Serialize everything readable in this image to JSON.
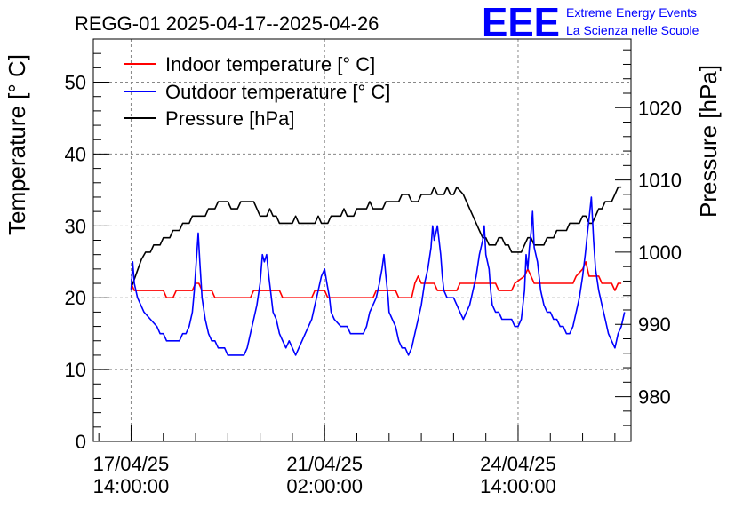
{
  "colors": {
    "indoor": "#ff0000",
    "outdoor": "#0000ff",
    "pressure": "#000000",
    "logo": "#0000ff",
    "grid": "#888888"
  },
  "logo": {
    "mark": "EEE",
    "line1": "Extreme Energy Events",
    "line2": "La Scienza nelle Scuole"
  },
  "chart_data": {
    "type": "line",
    "title": "REGG-01 2025-04-17--2025-04-26",
    "xlabel": "",
    "ylabel": "Temperature [° C]",
    "y2label": "Pressure [hPa]",
    "x_unit": "hours since 17/04/25 14:00:00",
    "xlim": [
      -11.7,
      155
    ],
    "ylim": [
      0,
      56
    ],
    "y2lim": [
      973.8,
      1029.5
    ],
    "grid": true,
    "legend_position": "top-left",
    "x_ticks": [
      {
        "x": 0,
        "line1": "17/04/25",
        "line2": "14:00:00"
      },
      {
        "x": 60,
        "line1": "21/04/25",
        "line2": "02:00:00"
      },
      {
        "x": 120,
        "line1": "24/04/25",
        "line2": "14:00:00"
      }
    ],
    "y_ticks": [
      {
        "value": 0,
        "label": "0"
      },
      {
        "value": 10,
        "label": "10"
      },
      {
        "value": 20,
        "label": "20"
      },
      {
        "value": 30,
        "label": "30"
      },
      {
        "value": 40,
        "label": "40"
      },
      {
        "value": 50,
        "label": "50"
      }
    ],
    "y2_ticks": [
      {
        "value": 980,
        "label": "980"
      },
      {
        "value": 990,
        "label": "990"
      },
      {
        "value": 1000,
        "label": "1000"
      },
      {
        "value": 1010,
        "label": "1010"
      },
      {
        "value": 1020,
        "label": "1020"
      }
    ],
    "series": [
      {
        "name": "Indoor temperature [° C]",
        "axis": "left",
        "color": "#ff0000",
        "points": [
          [
            0,
            22
          ],
          [
            1,
            21
          ],
          [
            10,
            21
          ],
          [
            11,
            20
          ],
          [
            13,
            20
          ],
          [
            14,
            21
          ],
          [
            19,
            21
          ],
          [
            20,
            22
          ],
          [
            21,
            22
          ],
          [
            22,
            21
          ],
          [
            25,
            21
          ],
          [
            26,
            20
          ],
          [
            37,
            20
          ],
          [
            38,
            21
          ],
          [
            46,
            21
          ],
          [
            47,
            20
          ],
          [
            56,
            20
          ],
          [
            57,
            21
          ],
          [
            60,
            21
          ],
          [
            61,
            20
          ],
          [
            75,
            20
          ],
          [
            76,
            21
          ],
          [
            82,
            21
          ],
          [
            83,
            20
          ],
          [
            87,
            20
          ],
          [
            88,
            22
          ],
          [
            89,
            23
          ],
          [
            90,
            22
          ],
          [
            94,
            22
          ],
          [
            95,
            21
          ],
          [
            101,
            21
          ],
          [
            102,
            22
          ],
          [
            113,
            22
          ],
          [
            114,
            21
          ],
          [
            118,
            21
          ],
          [
            119,
            22
          ],
          [
            122,
            23
          ],
          [
            123,
            24
          ],
          [
            124,
            23
          ],
          [
            125,
            22
          ],
          [
            126,
            22
          ],
          [
            137,
            22
          ],
          [
            138,
            23
          ],
          [
            140,
            24
          ],
          [
            141,
            25
          ],
          [
            142,
            23
          ],
          [
            145,
            23
          ],
          [
            146,
            22
          ],
          [
            149,
            22
          ],
          [
            150,
            21
          ],
          [
            151,
            22
          ],
          [
            152,
            22
          ]
        ]
      },
      {
        "name": "Outdoor temperature [° C]",
        "axis": "left",
        "color": "#0000ff",
        "points": [
          [
            0,
            21
          ],
          [
            0.5,
            25
          ],
          [
            1,
            22
          ],
          [
            2,
            20
          ],
          [
            4,
            18
          ],
          [
            6,
            17
          ],
          [
            8,
            16
          ],
          [
            9,
            15
          ],
          [
            10,
            15
          ],
          [
            11,
            14
          ],
          [
            15,
            14
          ],
          [
            16,
            15
          ],
          [
            17,
            15
          ],
          [
            18,
            16
          ],
          [
            19,
            18
          ],
          [
            19.6,
            21
          ],
          [
            20.2,
            25
          ],
          [
            20.8,
            29
          ],
          [
            21.3,
            25
          ],
          [
            22,
            20
          ],
          [
            23,
            17
          ],
          [
            24,
            15
          ],
          [
            25,
            14
          ],
          [
            26,
            14
          ],
          [
            27,
            13
          ],
          [
            29,
            13
          ],
          [
            30,
            12
          ],
          [
            35,
            12
          ],
          [
            36,
            13
          ],
          [
            37,
            15
          ],
          [
            38,
            17
          ],
          [
            39,
            19
          ],
          [
            40,
            22
          ],
          [
            40.7,
            26
          ],
          [
            41.3,
            25
          ],
          [
            42,
            26
          ],
          [
            42.7,
            23
          ],
          [
            43.5,
            20
          ],
          [
            44,
            18
          ],
          [
            45,
            17
          ],
          [
            46,
            15
          ],
          [
            47,
            14
          ],
          [
            48,
            13
          ],
          [
            49,
            14
          ],
          [
            50,
            13
          ],
          [
            51,
            12
          ],
          [
            52,
            13
          ],
          [
            53,
            14
          ],
          [
            54,
            15
          ],
          [
            55,
            16
          ],
          [
            56,
            17
          ],
          [
            57,
            19
          ],
          [
            58,
            21
          ],
          [
            59,
            23
          ],
          [
            60,
            24
          ],
          [
            60.7,
            22
          ],
          [
            61.5,
            20
          ],
          [
            62,
            18
          ],
          [
            63,
            17
          ],
          [
            65,
            16
          ],
          [
            67,
            16
          ],
          [
            68,
            15
          ],
          [
            72,
            15
          ],
          [
            73,
            16
          ],
          [
            74,
            18
          ],
          [
            75,
            19
          ],
          [
            76,
            20
          ],
          [
            77,
            22
          ],
          [
            77.8,
            24
          ],
          [
            78.4,
            26
          ],
          [
            79,
            23
          ],
          [
            79.7,
            20
          ],
          [
            80,
            18
          ],
          [
            81,
            17
          ],
          [
            82,
            16
          ],
          [
            83,
            14
          ],
          [
            84,
            13
          ],
          [
            85,
            13
          ],
          [
            86,
            12
          ],
          [
            87,
            13
          ],
          [
            88,
            15
          ],
          [
            89,
            17
          ],
          [
            90,
            19
          ],
          [
            91,
            22
          ],
          [
            92,
            24
          ],
          [
            93,
            27
          ],
          [
            93.5,
            30
          ],
          [
            94,
            28
          ],
          [
            95,
            30
          ],
          [
            96,
            26
          ],
          [
            96.5,
            23
          ],
          [
            97,
            21
          ],
          [
            98,
            20
          ],
          [
            100,
            20
          ],
          [
            101,
            19
          ],
          [
            102,
            18
          ],
          [
            103,
            17
          ],
          [
            104,
            18
          ],
          [
            105,
            19
          ],
          [
            106,
            21
          ],
          [
            107,
            23
          ],
          [
            108,
            26
          ],
          [
            109,
            28
          ],
          [
            109.5,
            30
          ],
          [
            110,
            26
          ],
          [
            111,
            24
          ],
          [
            111.5,
            21
          ],
          [
            112,
            19
          ],
          [
            113,
            18
          ],
          [
            114,
            18
          ],
          [
            115,
            17
          ],
          [
            118,
            17
          ],
          [
            119,
            16
          ],
          [
            120,
            16
          ],
          [
            121,
            17
          ],
          [
            122,
            21
          ],
          [
            122.5,
            26
          ],
          [
            123,
            24
          ],
          [
            123.5,
            27
          ],
          [
            124,
            29
          ],
          [
            124.5,
            32
          ],
          [
            125,
            27
          ],
          [
            126,
            25
          ],
          [
            127,
            21
          ],
          [
            128,
            19
          ],
          [
            129,
            18
          ],
          [
            130,
            18
          ],
          [
            131,
            17
          ],
          [
            132,
            17
          ],
          [
            133,
            16
          ],
          [
            134,
            16
          ],
          [
            135,
            15
          ],
          [
            136,
            15
          ],
          [
            137,
            16
          ],
          [
            138,
            18
          ],
          [
            139,
            20
          ],
          [
            140,
            23
          ],
          [
            140.8,
            26
          ],
          [
            141.5,
            29
          ],
          [
            142,
            31
          ],
          [
            142.7,
            34
          ],
          [
            143.4,
            28
          ],
          [
            144,
            24
          ],
          [
            145,
            21
          ],
          [
            146,
            19
          ],
          [
            147,
            17
          ],
          [
            148,
            15
          ],
          [
            149,
            14
          ],
          [
            150,
            13
          ],
          [
            151,
            15
          ],
          [
            152,
            16
          ],
          [
            153,
            18
          ]
        ]
      },
      {
        "name": "Pressure [hPa]",
        "axis": "right",
        "color": "#000000",
        "points": [
          [
            0,
            995
          ],
          [
            0.8,
            996
          ],
          [
            1.6,
            997
          ],
          [
            2.4,
            998
          ],
          [
            3.2,
            999
          ],
          [
            4.5,
            1000
          ],
          [
            6,
            1000
          ],
          [
            7,
            1001
          ],
          [
            9,
            1001
          ],
          [
            10,
            1002
          ],
          [
            12,
            1002
          ],
          [
            13,
            1003
          ],
          [
            15,
            1003
          ],
          [
            16,
            1004
          ],
          [
            18,
            1004
          ],
          [
            19,
            1005
          ],
          [
            22,
            1005
          ],
          [
            23,
            1005
          ],
          [
            24,
            1006
          ],
          [
            26,
            1006
          ],
          [
            27,
            1007
          ],
          [
            30,
            1007
          ],
          [
            31,
            1006
          ],
          [
            33,
            1006
          ],
          [
            34,
            1007
          ],
          [
            38,
            1007
          ],
          [
            39,
            1006
          ],
          [
            40,
            1005
          ],
          [
            42,
            1005
          ],
          [
            43,
            1006
          ],
          [
            44,
            1005
          ],
          [
            45,
            1005
          ],
          [
            46,
            1004
          ],
          [
            50,
            1004
          ],
          [
            51,
            1005
          ],
          [
            52,
            1004
          ],
          [
            57,
            1004
          ],
          [
            58,
            1005
          ],
          [
            59,
            1004
          ],
          [
            61,
            1004
          ],
          [
            62,
            1005
          ],
          [
            65,
            1005
          ],
          [
            66,
            1006
          ],
          [
            67,
            1005
          ],
          [
            69,
            1005
          ],
          [
            70,
            1006
          ],
          [
            73,
            1006
          ],
          [
            74,
            1007
          ],
          [
            75,
            1006
          ],
          [
            78,
            1006
          ],
          [
            79,
            1007
          ],
          [
            83,
            1007
          ],
          [
            84,
            1008
          ],
          [
            86,
            1008
          ],
          [
            87,
            1007
          ],
          [
            89,
            1007
          ],
          [
            90,
            1008
          ],
          [
            93,
            1008
          ],
          [
            94,
            1009
          ],
          [
            95,
            1008
          ],
          [
            97,
            1008
          ],
          [
            98,
            1009
          ],
          [
            99,
            1008
          ],
          [
            100,
            1008
          ],
          [
            101,
            1009
          ],
          [
            103,
            1008
          ],
          [
            104,
            1007
          ],
          [
            105,
            1006
          ],
          [
            106,
            1005
          ],
          [
            107,
            1004
          ],
          [
            108,
            1003
          ],
          [
            109,
            1002
          ],
          [
            110,
            1002
          ],
          [
            111,
            1001
          ],
          [
            113,
            1001
          ],
          [
            114,
            1002
          ],
          [
            115,
            1002
          ],
          [
            116,
            1001
          ],
          [
            117,
            1001
          ],
          [
            118,
            1000
          ],
          [
            121,
            1000
          ],
          [
            122,
            1001
          ],
          [
            123,
            1002
          ],
          [
            124,
            1002
          ],
          [
            125,
            1001
          ],
          [
            128,
            1001
          ],
          [
            129,
            1002
          ],
          [
            131,
            1002
          ],
          [
            132,
            1003
          ],
          [
            135,
            1003
          ],
          [
            136,
            1004
          ],
          [
            139,
            1004
          ],
          [
            140,
            1005
          ],
          [
            141,
            1005
          ],
          [
            142,
            1004
          ],
          [
            143,
            1004
          ],
          [
            144,
            1005
          ],
          [
            145,
            1006
          ],
          [
            146,
            1006
          ],
          [
            147,
            1007
          ],
          [
            149,
            1007
          ],
          [
            150,
            1008
          ],
          [
            151,
            1009
          ],
          [
            152,
            1009
          ]
        ]
      }
    ]
  }
}
